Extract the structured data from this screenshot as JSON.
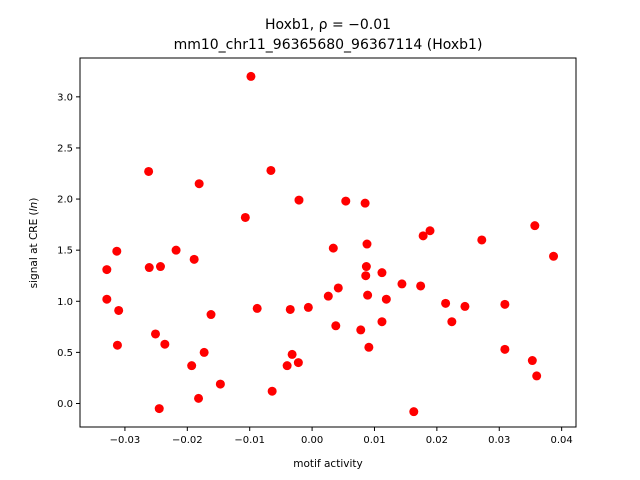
{
  "chart_data": {
    "type": "scatter",
    "title_line1": "Hoxb1, ρ = −0.01",
    "title_line2": "mm10_chr11_96365680_96367114 (Hoxb1)",
    "xlabel": "motif activity",
    "ylabel": "signal at CRE (ln)",
    "xlim": [
      -0.0372,
      0.0423
    ],
    "ylim": [
      -0.23,
      3.38
    ],
    "x_ticks": [
      -0.03,
      -0.02,
      -0.01,
      0.0,
      0.01,
      0.02,
      0.03,
      0.04
    ],
    "x_tick_labels": [
      "−0.03",
      "−0.02",
      "−0.01",
      "0.00",
      "0.01",
      "0.02",
      "0.03",
      "0.04"
    ],
    "y_ticks": [
      0.0,
      0.5,
      1.0,
      1.5,
      2.0,
      2.5,
      3.0
    ],
    "y_tick_labels": [
      "0.0",
      "0.5",
      "1.0",
      "1.5",
      "2.0",
      "2.5",
      "3.0"
    ],
    "grid": false,
    "marker_color": "#ff0000",
    "points": [
      {
        "x": -0.0329,
        "y": 1.31
      },
      {
        "x": -0.0329,
        "y": 1.02
      },
      {
        "x": -0.0313,
        "y": 1.49
      },
      {
        "x": -0.031,
        "y": 0.91
      },
      {
        "x": -0.0312,
        "y": 0.57
      },
      {
        "x": -0.0262,
        "y": 2.27
      },
      {
        "x": -0.0261,
        "y": 1.33
      },
      {
        "x": -0.0243,
        "y": 1.34
      },
      {
        "x": -0.0251,
        "y": 0.68
      },
      {
        "x": -0.0236,
        "y": 0.58
      },
      {
        "x": -0.0245,
        "y": -0.05
      },
      {
        "x": -0.0218,
        "y": 1.5
      },
      {
        "x": -0.0193,
        "y": 0.37
      },
      {
        "x": -0.0189,
        "y": 1.41
      },
      {
        "x": -0.0181,
        "y": 2.15
      },
      {
        "x": -0.0182,
        "y": 0.05
      },
      {
        "x": -0.0173,
        "y": 0.5
      },
      {
        "x": -0.0162,
        "y": 0.87
      },
      {
        "x": -0.0147,
        "y": 0.19
      },
      {
        "x": -0.0107,
        "y": 1.82
      },
      {
        "x": -0.0098,
        "y": 3.2
      },
      {
        "x": -0.0088,
        "y": 0.93
      },
      {
        "x": -0.0066,
        "y": 2.28
      },
      {
        "x": -0.0064,
        "y": 0.12
      },
      {
        "x": -0.004,
        "y": 0.37
      },
      {
        "x": -0.0035,
        "y": 0.92
      },
      {
        "x": -0.0032,
        "y": 0.48
      },
      {
        "x": -0.0021,
        "y": 1.99
      },
      {
        "x": -0.0022,
        "y": 0.4
      },
      {
        "x": -0.0006,
        "y": 0.94
      },
      {
        "x": 0.0026,
        "y": 1.05
      },
      {
        "x": 0.0034,
        "y": 1.52
      },
      {
        "x": 0.0038,
        "y": 0.76
      },
      {
        "x": 0.0042,
        "y": 1.13
      },
      {
        "x": 0.0054,
        "y": 1.98
      },
      {
        "x": 0.0078,
        "y": 0.72
      },
      {
        "x": 0.0085,
        "y": 1.96
      },
      {
        "x": 0.0086,
        "y": 1.25
      },
      {
        "x": 0.0087,
        "y": 1.34
      },
      {
        "x": 0.0088,
        "y": 1.56
      },
      {
        "x": 0.0089,
        "y": 1.06
      },
      {
        "x": 0.0091,
        "y": 0.55
      },
      {
        "x": 0.0112,
        "y": 1.28
      },
      {
        "x": 0.0112,
        "y": 0.8
      },
      {
        "x": 0.0119,
        "y": 1.02
      },
      {
        "x": 0.0144,
        "y": 1.17
      },
      {
        "x": 0.0163,
        "y": -0.08
      },
      {
        "x": 0.0174,
        "y": 1.15
      },
      {
        "x": 0.0178,
        "y": 1.64
      },
      {
        "x": 0.0189,
        "y": 1.69
      },
      {
        "x": 0.0214,
        "y": 0.98
      },
      {
        "x": 0.0224,
        "y": 0.8
      },
      {
        "x": 0.0245,
        "y": 0.95
      },
      {
        "x": 0.0272,
        "y": 1.6
      },
      {
        "x": 0.0309,
        "y": 0.97
      },
      {
        "x": 0.0309,
        "y": 0.53
      },
      {
        "x": 0.0353,
        "y": 0.42
      },
      {
        "x": 0.0357,
        "y": 1.74
      },
      {
        "x": 0.036,
        "y": 0.27
      },
      {
        "x": 0.0387,
        "y": 1.44
      }
    ]
  }
}
